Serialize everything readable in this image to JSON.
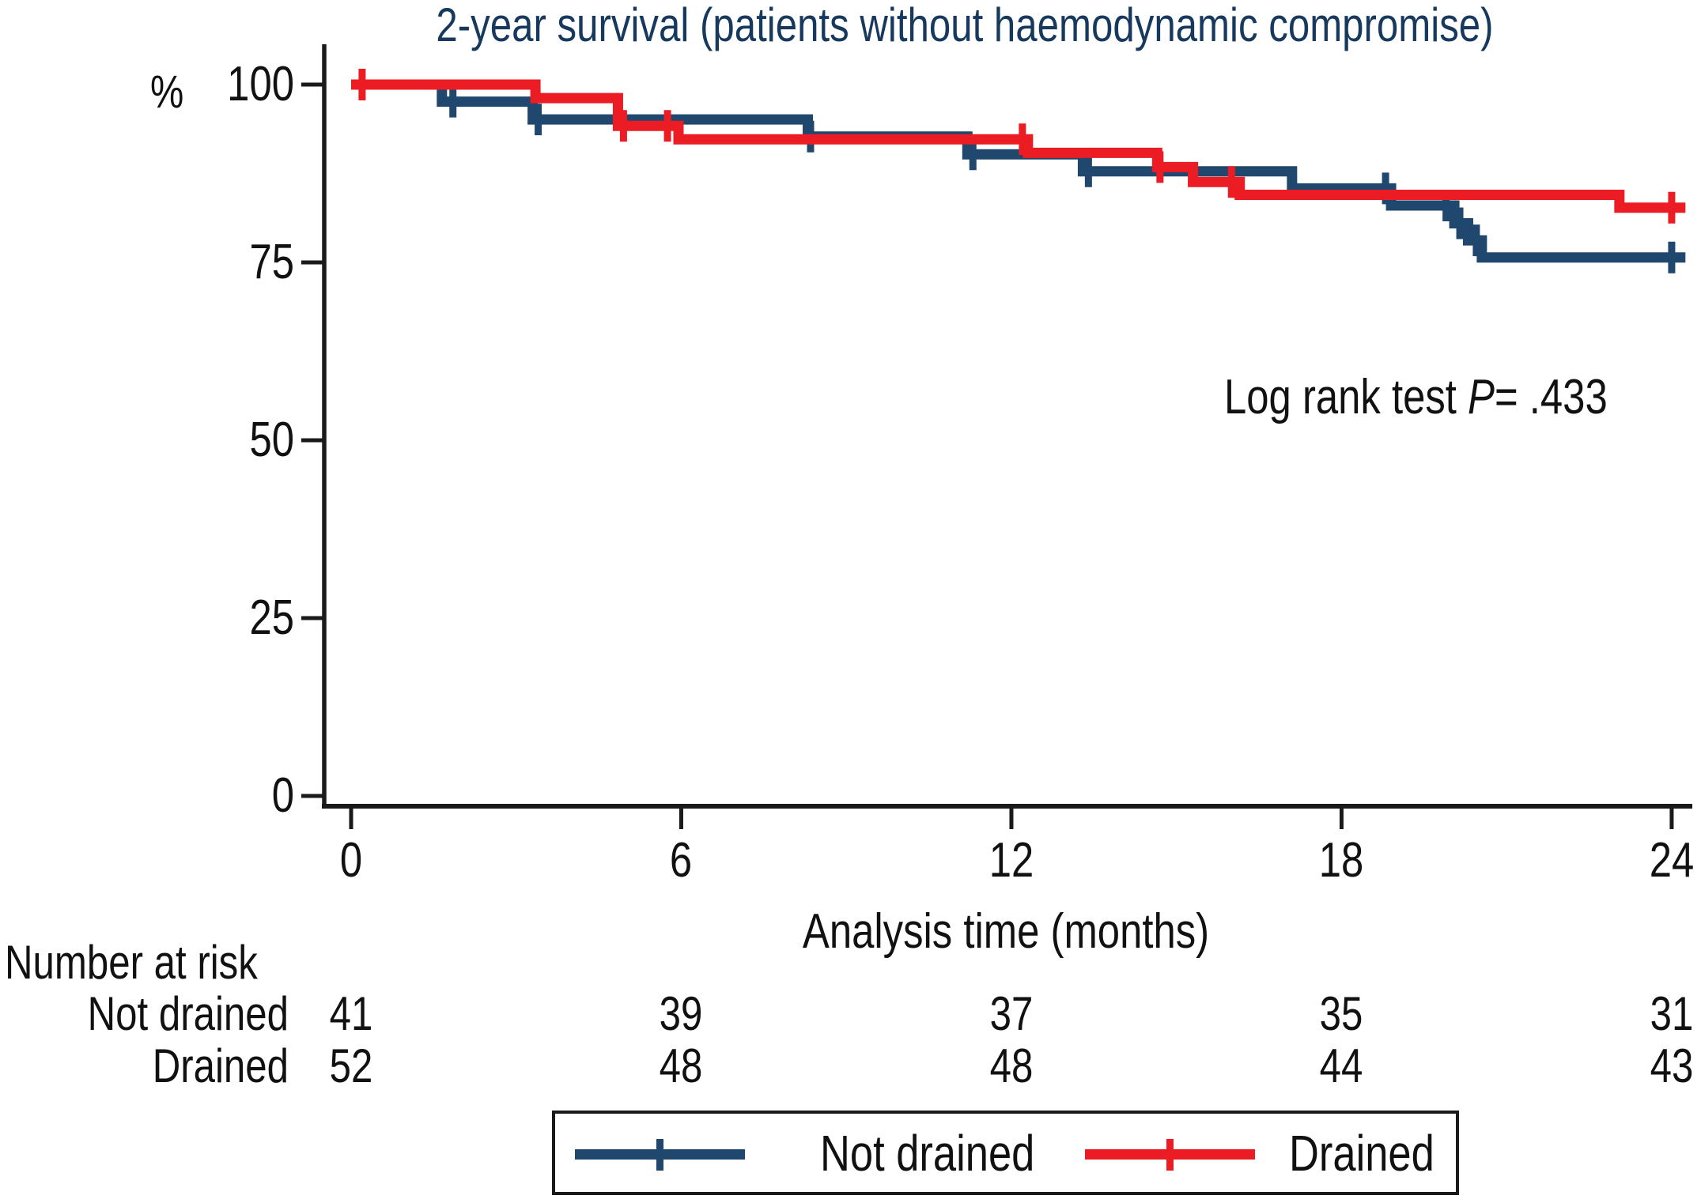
{
  "chart_data": {
    "type": "line",
    "subtype": "kaplan-meier-step",
    "title": "2-year survival (patients without haemodynamic compromise)",
    "title_color": "#17395D",
    "ylabel": "%",
    "xlabel": "Analysis time (months)",
    "yticks": [
      0,
      25,
      50,
      75,
      100
    ],
    "xticks": [
      0,
      6,
      12,
      18,
      24
    ],
    "ylim": [
      0,
      100
    ],
    "xlim": [
      0,
      24.25
    ],
    "grid": false,
    "legend_position": "bottom",
    "annotation": {
      "text": "Log rank test ",
      "p": "P",
      "value": "= .433"
    },
    "axis_color": "#1a1a1a",
    "series": [
      {
        "name": "Not drained",
        "color": "#20486F",
        "steps": [
          [
            0,
            100
          ],
          [
            1.65,
            97.6
          ],
          [
            3.3,
            95.1
          ],
          [
            8.3,
            92.7
          ],
          [
            11.2,
            90.2
          ],
          [
            13.3,
            87.8
          ],
          [
            17.1,
            85.4
          ],
          [
            18.9,
            83.0
          ],
          [
            20.05,
            80.5
          ],
          [
            20.3,
            78.1
          ],
          [
            20.55,
            75.7
          ]
        ],
        "end_time": 24.25,
        "censors": [
          [
            1.85,
            97.6
          ],
          [
            3.4,
            95.1
          ],
          [
            8.35,
            92.7
          ],
          [
            11.3,
            90.2
          ],
          [
            13.4,
            87.8
          ],
          [
            18.8,
            85.4
          ],
          [
            19.9,
            83.0
          ],
          [
            20.15,
            80.5
          ],
          [
            20.45,
            78.1
          ],
          [
            24.0,
            75.7
          ]
        ]
      },
      {
        "name": "Drained",
        "color": "#EC1C24",
        "steps": [
          [
            0,
            100
          ],
          [
            3.35,
            98.1
          ],
          [
            4.85,
            94.2
          ],
          [
            5.95,
            92.3
          ],
          [
            12.3,
            90.4
          ],
          [
            14.65,
            88.4
          ],
          [
            15.3,
            86.3
          ],
          [
            16.15,
            84.5
          ],
          [
            23.05,
            82.7
          ]
        ],
        "end_time": 24.25,
        "censors": [
          [
            0.2,
            100
          ],
          [
            4.95,
            94.2
          ],
          [
            5.75,
            94.2
          ],
          [
            12.2,
            92.3
          ],
          [
            14.7,
            88.4
          ],
          [
            16.0,
            86.3
          ],
          [
            24.0,
            82.7
          ]
        ]
      }
    ],
    "risk_table": {
      "title": "Number at risk",
      "times": [
        0,
        6,
        12,
        18,
        24
      ],
      "rows": [
        {
          "label": "Not drained",
          "values": [
            "41",
            "39",
            "37",
            "35",
            "31"
          ]
        },
        {
          "label": "Drained",
          "values": [
            "52",
            "48",
            "48",
            "44",
            "43"
          ]
        }
      ]
    }
  }
}
